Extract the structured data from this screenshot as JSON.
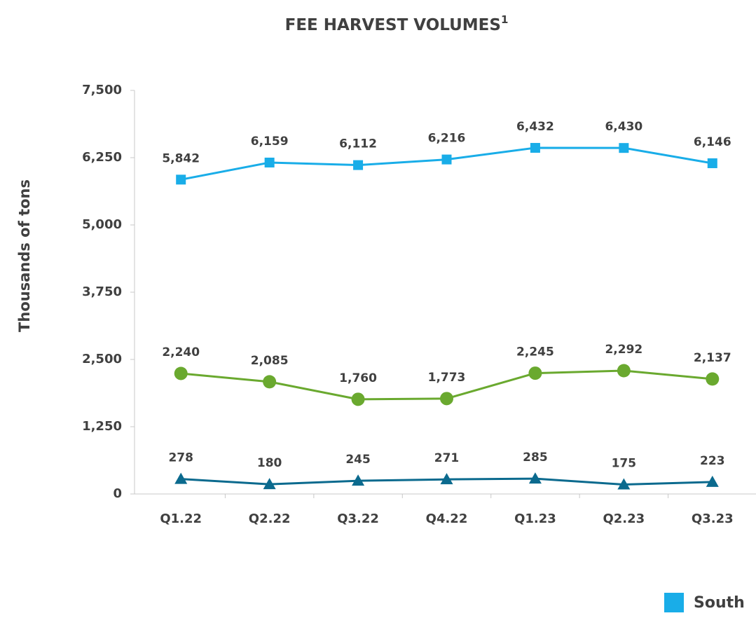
{
  "chart_data": {
    "type": "line",
    "title": "FEE HARVEST VOLUMES",
    "title_superscript": "1",
    "ylabel": "Thousands of tons",
    "categories": [
      "Q1.22",
      "Q2.22",
      "Q3.22",
      "Q4.22",
      "Q1.23",
      "Q2.23",
      "Q3.23"
    ],
    "ylim": [
      0,
      7500
    ],
    "yticks": [
      0,
      {
        "value": 1250,
        "label": "1,250"
      },
      {
        "value": 2500,
        "label": "2,500"
      },
      {
        "value": 3750,
        "label": "3,750"
      },
      {
        "value": 5000,
        "label": "5,000"
      },
      {
        "value": 6250,
        "label": "6,250"
      },
      {
        "value": 7500,
        "label": "7,500"
      }
    ],
    "series": [
      {
        "name": "South",
        "color": "#19ade8",
        "marker": "square",
        "values": [
          5842,
          6159,
          6112,
          6216,
          6432,
          6430,
          6146
        ],
        "value_labels": [
          "5,842",
          "6,159",
          "6,112",
          "6,216",
          "6,432",
          "6,430",
          "6,146"
        ]
      },
      {
        "color": "#6aa92f",
        "marker": "circle",
        "values": [
          2240,
          2085,
          1760,
          1773,
          2245,
          2292,
          2137
        ],
        "value_labels": [
          "2,240",
          "2,085",
          "1,760",
          "1,773",
          "2,245",
          "2,292",
          "2,137"
        ]
      },
      {
        "color": "#0b6a8e",
        "marker": "triangle",
        "values": [
          278,
          180,
          245,
          271,
          285,
          175,
          223
        ]
      }
    ]
  }
}
